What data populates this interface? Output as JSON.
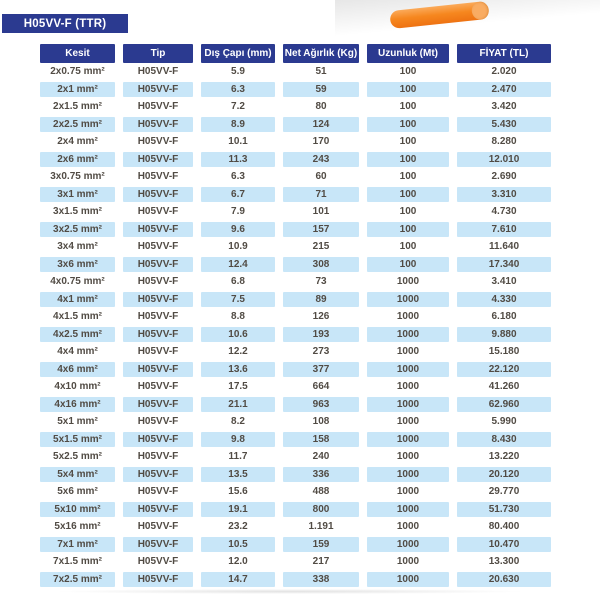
{
  "page": {
    "title": "H05VV-F (TTR)"
  },
  "colors": {
    "navy": "#2b3a90",
    "row_highlight_blue": "#c8e6f8",
    "body_text": "#514b44",
    "cable_orange": "#f6871f",
    "cable_red": "#cf3a48"
  },
  "decoration": {
    "cable_photo": "orange-cable-photo"
  },
  "table": {
    "columns": [
      "Kesit",
      "Tip",
      "Dış Çapı (mm)",
      "Net Ağırlık (Kg)",
      "Uzunluk (Mt)",
      "FİYAT (TL)"
    ],
    "column_keys": [
      "kesit",
      "tip",
      "dis-capi",
      "net-agirlik",
      "uzunluk",
      "fiyat"
    ],
    "rows": [
      [
        "2x0.75 mm²",
        "H05VV-F",
        "5.9",
        "51",
        "100",
        "2.020"
      ],
      [
        "2x1 mm²",
        "H05VV-F",
        "6.3",
        "59",
        "100",
        "2.470"
      ],
      [
        "2x1.5 mm²",
        "H05VV-F",
        "7.2",
        "80",
        "100",
        "3.420"
      ],
      [
        "2x2.5 mm²",
        "H05VV-F",
        "8.9",
        "124",
        "100",
        "5.430"
      ],
      [
        "2x4 mm²",
        "H05VV-F",
        "10.1",
        "170",
        "100",
        "8.280"
      ],
      [
        "2x6 mm²",
        "H05VV-F",
        "11.3",
        "243",
        "100",
        "12.010"
      ],
      [
        "3x0.75 mm²",
        "H05VV-F",
        "6.3",
        "60",
        "100",
        "2.690"
      ],
      [
        "3x1 mm²",
        "H05VV-F",
        "6.7",
        "71",
        "100",
        "3.310"
      ],
      [
        "3x1.5 mm²",
        "H05VV-F",
        "7.9",
        "101",
        "100",
        "4.730"
      ],
      [
        "3x2.5 mm²",
        "H05VV-F",
        "9.6",
        "157",
        "100",
        "7.610"
      ],
      [
        "3x4 mm²",
        "H05VV-F",
        "10.9",
        "215",
        "100",
        "11.640"
      ],
      [
        "3x6 mm²",
        "H05VV-F",
        "12.4",
        "308",
        "100",
        "17.340"
      ],
      [
        "4x0.75 mm²",
        "H05VV-F",
        "6.8",
        "73",
        "1000",
        "3.410"
      ],
      [
        "4x1 mm²",
        "H05VV-F",
        "7.5",
        "89",
        "1000",
        "4.330"
      ],
      [
        "4x1.5 mm²",
        "H05VV-F",
        "8.8",
        "126",
        "1000",
        "6.180"
      ],
      [
        "4x2.5 mm²",
        "H05VV-F",
        "10.6",
        "193",
        "1000",
        "9.880"
      ],
      [
        "4x4 mm²",
        "H05VV-F",
        "12.2",
        "273",
        "1000",
        "15.180"
      ],
      [
        "4x6 mm²",
        "H05VV-F",
        "13.6",
        "377",
        "1000",
        "22.120"
      ],
      [
        "4x10 mm²",
        "H05VV-F",
        "17.5",
        "664",
        "1000",
        "41.260"
      ],
      [
        "4x16 mm²",
        "H05VV-F",
        "21.1",
        "963",
        "1000",
        "62.960"
      ],
      [
        "5x1 mm²",
        "H05VV-F",
        "8.2",
        "108",
        "1000",
        "5.990"
      ],
      [
        "5x1.5 mm²",
        "H05VV-F",
        "9.8",
        "158",
        "1000",
        "8.430"
      ],
      [
        "5x2.5 mm²",
        "H05VV-F",
        "11.7",
        "240",
        "1000",
        "13.220"
      ],
      [
        "5x4 mm²",
        "H05VV-F",
        "13.5",
        "336",
        "1000",
        "20.120"
      ],
      [
        "5x6 mm²",
        "H05VV-F",
        "15.6",
        "488",
        "1000",
        "29.770"
      ],
      [
        "5x10 mm²",
        "H05VV-F",
        "19.1",
        "800",
        "1000",
        "51.730"
      ],
      [
        "5x16 mm²",
        "H05VV-F",
        "23.2",
        "1.191",
        "1000",
        "80.400"
      ],
      [
        "7x1 mm²",
        "H05VV-F",
        "10.5",
        "159",
        "1000",
        "10.470"
      ],
      [
        "7x1.5 mm²",
        "H05VV-F",
        "12.0",
        "217",
        "1000",
        "13.300"
      ],
      [
        "7x2.5 mm²",
        "H05VV-F",
        "14.7",
        "338",
        "1000",
        "20.630"
      ]
    ]
  }
}
